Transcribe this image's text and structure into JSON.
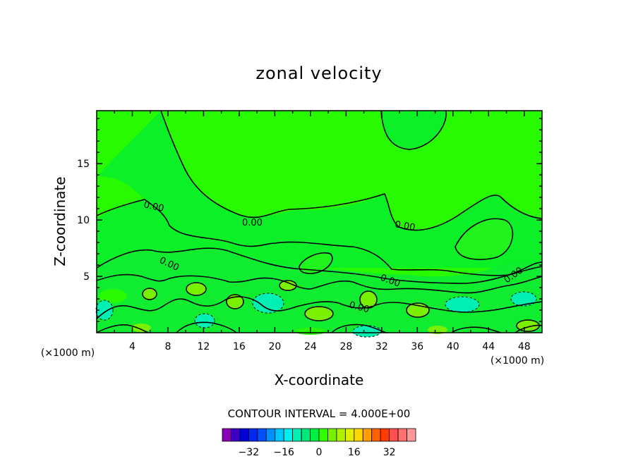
{
  "chart_data": {
    "type": "contour",
    "title": "zonal velocity",
    "xlabel": "X-coordinate",
    "ylabel": "Z-coordinate",
    "x_unit": "(×1000 m)",
    "x_ticks": [
      4,
      8,
      12,
      16,
      20,
      24,
      28,
      32,
      36,
      40,
      44,
      48
    ],
    "y_ticks": [
      5,
      10,
      15
    ],
    "xlim": [
      0,
      50
    ],
    "ylim": [
      0,
      19.7
    ],
    "contour_interval_text": "CONTOUR INTERVAL = 4.000E+00",
    "contour_labels": [
      "0.00",
      "0.00",
      "0.00",
      "0.00",
      "0.00",
      "0.00",
      "0.00",
      "0.00"
    ],
    "colorbar": {
      "ticks": [
        "-32",
        "-16",
        "0",
        "16",
        "32"
      ],
      "colors": [
        "#8a00b8",
        "#3c00c8",
        "#0000d8",
        "#0028f0",
        "#0050ff",
        "#0090ff",
        "#00c8ff",
        "#00f0f0",
        "#00f0b4",
        "#00e878",
        "#00f040",
        "#30ff00",
        "#78f000",
        "#b0f000",
        "#e0f000",
        "#ffd800",
        "#ffa000",
        "#ff6000",
        "#ff3c00",
        "#ff5050",
        "#ff7070",
        "#ff9898"
      ]
    },
    "grid": false
  }
}
